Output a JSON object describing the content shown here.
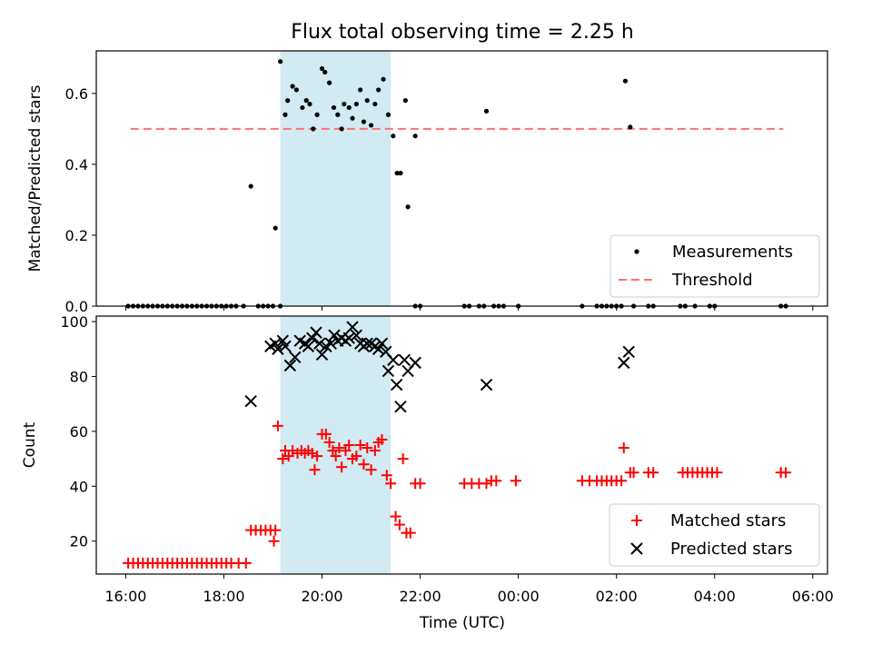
{
  "chart_data": {
    "title": "Flux total observing time = 2.25 h",
    "xlabel": "Time (UTC)",
    "x_unit": "hours since 16:00 UTC (local axis offset)",
    "xlim": [
      -0.6,
      14.3
    ],
    "xticks": [
      {
        "label": "16:00",
        "value": 0
      },
      {
        "label": "18:00",
        "value": 2
      },
      {
        "label": "20:00",
        "value": 4
      },
      {
        "label": "22:00",
        "value": 6
      },
      {
        "label": "00:00",
        "value": 8
      },
      {
        "label": "02:00",
        "value": 10
      },
      {
        "label": "04:00",
        "value": 12
      },
      {
        "label": "06:00",
        "value": 14
      }
    ],
    "highlight_span": {
      "x0": 3.15,
      "x1": 5.4,
      "color": "#add8e6"
    },
    "panels": [
      {
        "type": "scatter",
        "ylabel": "Matched/Predicted stars",
        "ylim": [
          0,
          0.72
        ],
        "yticks": [
          0.0,
          0.2,
          0.4,
          0.6
        ],
        "ytick_labels": [
          "0.0",
          "0.2",
          "0.4",
          "0.6"
        ],
        "threshold": {
          "name": "Threshold",
          "value": 0.5,
          "x0": 0.1,
          "x1": 13.4,
          "color": "#ff7070"
        },
        "legend_position": "lower-right",
        "legend": [
          "Measurements",
          "Threshold"
        ],
        "series": [
          {
            "name": "Measurements",
            "marker": "dot",
            "color": "#000000",
            "points": [
              [
                0.05,
                0
              ],
              [
                0.15,
                0
              ],
              [
                0.25,
                0
              ],
              [
                0.35,
                0
              ],
              [
                0.45,
                0
              ],
              [
                0.55,
                0
              ],
              [
                0.65,
                0
              ],
              [
                0.75,
                0
              ],
              [
                0.85,
                0
              ],
              [
                0.95,
                0
              ],
              [
                1.05,
                0
              ],
              [
                1.15,
                0
              ],
              [
                1.25,
                0
              ],
              [
                1.35,
                0
              ],
              [
                1.45,
                0
              ],
              [
                1.55,
                0
              ],
              [
                1.65,
                0
              ],
              [
                1.75,
                0
              ],
              [
                1.85,
                0
              ],
              [
                1.95,
                0
              ],
              [
                2.05,
                0
              ],
              [
                2.15,
                0
              ],
              [
                2.25,
                0
              ],
              [
                2.4,
                0
              ],
              [
                2.55,
                0.338
              ],
              [
                2.7,
                0
              ],
              [
                2.8,
                0
              ],
              [
                2.9,
                0
              ],
              [
                3.0,
                0
              ],
              [
                3.15,
                0
              ],
              [
                3.05,
                0.22
              ],
              [
                3.15,
                0.69
              ],
              [
                3.25,
                0.54
              ],
              [
                3.3,
                0.58
              ],
              [
                3.4,
                0.62
              ],
              [
                3.48,
                0.61
              ],
              [
                3.6,
                0.56
              ],
              [
                3.68,
                0.58
              ],
              [
                3.75,
                0.57
              ],
              [
                3.82,
                0.5
              ],
              [
                3.9,
                0.54
              ],
              [
                4.0,
                0.67
              ],
              [
                4.06,
                0.66
              ],
              [
                4.15,
                0.63
              ],
              [
                4.24,
                0.56
              ],
              [
                4.32,
                0.54
              ],
              [
                4.4,
                0.5
              ],
              [
                4.45,
                0.57
              ],
              [
                4.55,
                0.56
              ],
              [
                4.62,
                0.53
              ],
              [
                4.7,
                0.57
              ],
              [
                4.78,
                0.61
              ],
              [
                4.85,
                0.52
              ],
              [
                4.92,
                0.58
              ],
              [
                5.0,
                0.51
              ],
              [
                5.08,
                0.57
              ],
              [
                5.15,
                0.61
              ],
              [
                5.25,
                0.64
              ],
              [
                5.35,
                0.54
              ],
              [
                5.45,
                0.48
              ],
              [
                5.53,
                0.375
              ],
              [
                5.6,
                0.375
              ],
              [
                5.7,
                0.58
              ],
              [
                5.75,
                0.28
              ],
              [
                5.9,
                0.48
              ],
              [
                5.9,
                0
              ],
              [
                6.0,
                0
              ],
              [
                6.9,
                0
              ],
              [
                7.0,
                0
              ],
              [
                7.2,
                0
              ],
              [
                7.3,
                0
              ],
              [
                7.35,
                0.55
              ],
              [
                7.5,
                0
              ],
              [
                7.6,
                0
              ],
              [
                7.7,
                0
              ],
              [
                8.0,
                0
              ],
              [
                9.3,
                0
              ],
              [
                9.6,
                0
              ],
              [
                9.7,
                0
              ],
              [
                9.8,
                0
              ],
              [
                9.9,
                0
              ],
              [
                10.0,
                0
              ],
              [
                10.1,
                0
              ],
              [
                10.18,
                0.635
              ],
              [
                10.28,
                0.505
              ],
              [
                10.35,
                0
              ],
              [
                10.65,
                0
              ],
              [
                10.75,
                0
              ],
              [
                11.3,
                0
              ],
              [
                11.4,
                0
              ],
              [
                11.6,
                0
              ],
              [
                11.9,
                0
              ],
              [
                12.0,
                0
              ],
              [
                13.35,
                0
              ],
              [
                13.45,
                0
              ]
            ]
          }
        ]
      },
      {
        "type": "scatter",
        "ylabel": "Count",
        "ylim": [
          8,
          102
        ],
        "yticks": [
          20,
          40,
          60,
          80,
          100
        ],
        "ytick_labels": [
          "20",
          "40",
          "60",
          "80",
          "100"
        ],
        "legend_position": "lower-right",
        "legend": [
          "Matched stars",
          "Predicted stars"
        ],
        "series": [
          {
            "name": "Matched stars",
            "marker": "plus",
            "color": "#ff0000",
            "points": [
              [
                0.05,
                12
              ],
              [
                0.15,
                12
              ],
              [
                0.25,
                12
              ],
              [
                0.35,
                12
              ],
              [
                0.45,
                12
              ],
              [
                0.55,
                12
              ],
              [
                0.65,
                12
              ],
              [
                0.75,
                12
              ],
              [
                0.85,
                12
              ],
              [
                0.95,
                12
              ],
              [
                1.05,
                12
              ],
              [
                1.15,
                12
              ],
              [
                1.25,
                12
              ],
              [
                1.35,
                12
              ],
              [
                1.45,
                12
              ],
              [
                1.55,
                12
              ],
              [
                1.65,
                12
              ],
              [
                1.75,
                12
              ],
              [
                1.85,
                12
              ],
              [
                1.95,
                12
              ],
              [
                2.05,
                12
              ],
              [
                2.15,
                12
              ],
              [
                2.3,
                12
              ],
              [
                2.45,
                12
              ],
              [
                2.55,
                24
              ],
              [
                2.65,
                24
              ],
              [
                2.75,
                24
              ],
              [
                2.85,
                24
              ],
              [
                2.95,
                24
              ],
              [
                3.05,
                24
              ],
              [
                3.02,
                20
              ],
              [
                3.1,
                62
              ],
              [
                3.2,
                50
              ],
              [
                3.25,
                53
              ],
              [
                3.32,
                51
              ],
              [
                3.4,
                53
              ],
              [
                3.5,
                52
              ],
              [
                3.58,
                53
              ],
              [
                3.65,
                52
              ],
              [
                3.72,
                53
              ],
              [
                3.8,
                52
              ],
              [
                3.85,
                46
              ],
              [
                3.9,
                51
              ],
              [
                4.0,
                59
              ],
              [
                4.08,
                59
              ],
              [
                4.15,
                56
              ],
              [
                4.22,
                53
              ],
              [
                4.28,
                51
              ],
              [
                4.35,
                54
              ],
              [
                4.4,
                47
              ],
              [
                4.48,
                53
              ],
              [
                4.55,
                55
              ],
              [
                4.62,
                50
              ],
              [
                4.7,
                51
              ],
              [
                4.78,
                55
              ],
              [
                4.85,
                48
              ],
              [
                4.92,
                54
              ],
              [
                5.0,
                46
              ],
              [
                5.08,
                53
              ],
              [
                5.15,
                56
              ],
              [
                5.22,
                57
              ],
              [
                5.32,
                44
              ],
              [
                5.4,
                41
              ],
              [
                5.5,
                29
              ],
              [
                5.58,
                26
              ],
              [
                5.65,
                50
              ],
              [
                5.72,
                23
              ],
              [
                5.8,
                23
              ],
              [
                5.9,
                41
              ],
              [
                6.0,
                41
              ],
              [
                6.9,
                41
              ],
              [
                7.05,
                41
              ],
              [
                7.2,
                41
              ],
              [
                7.35,
                41
              ],
              [
                7.45,
                42
              ],
              [
                7.55,
                42
              ],
              [
                7.95,
                42
              ],
              [
                9.3,
                42
              ],
              [
                9.45,
                42
              ],
              [
                9.6,
                42
              ],
              [
                9.7,
                42
              ],
              [
                9.8,
                42
              ],
              [
                9.9,
                42
              ],
              [
                10.0,
                42
              ],
              [
                10.1,
                42
              ],
              [
                10.15,
                54
              ],
              [
                10.28,
                45
              ],
              [
                10.35,
                45
              ],
              [
                10.65,
                45
              ],
              [
                10.75,
                45
              ],
              [
                11.35,
                45
              ],
              [
                11.45,
                45
              ],
              [
                11.55,
                45
              ],
              [
                11.65,
                45
              ],
              [
                11.75,
                45
              ],
              [
                11.85,
                45
              ],
              [
                11.95,
                45
              ],
              [
                12.05,
                45
              ],
              [
                13.35,
                45
              ],
              [
                13.45,
                45
              ]
            ]
          },
          {
            "name": "Predicted stars",
            "marker": "x",
            "color": "#000000",
            "points": [
              [
                2.55,
                71
              ],
              [
                2.95,
                91
              ],
              [
                3.05,
                92
              ],
              [
                3.1,
                90
              ],
              [
                3.2,
                93
              ],
              [
                3.25,
                91
              ],
              [
                3.35,
                84
              ],
              [
                3.45,
                87
              ],
              [
                3.55,
                93
              ],
              [
                3.65,
                92
              ],
              [
                3.72,
                91
              ],
              [
                3.8,
                94
              ],
              [
                3.88,
                96
              ],
              [
                3.95,
                92
              ],
              [
                4.0,
                88
              ],
              [
                4.08,
                91
              ],
              [
                4.18,
                92
              ],
              [
                4.25,
                95
              ],
              [
                4.32,
                93
              ],
              [
                4.4,
                94
              ],
              [
                4.48,
                93
              ],
              [
                4.55,
                94
              ],
              [
                4.62,
                98
              ],
              [
                4.7,
                95
              ],
              [
                4.78,
                92
              ],
              [
                4.85,
                91
              ],
              [
                4.92,
                92
              ],
              [
                5.0,
                92
              ],
              [
                5.08,
                91
              ],
              [
                5.15,
                90
              ],
              [
                5.22,
                92
              ],
              [
                5.3,
                89
              ],
              [
                5.35,
                82
              ],
              [
                5.45,
                86
              ],
              [
                5.52,
                77
              ],
              [
                5.6,
                69
              ],
              [
                5.68,
                86
              ],
              [
                5.75,
                82
              ],
              [
                5.9,
                85
              ],
              [
                7.35,
                77
              ],
              [
                10.15,
                85
              ],
              [
                10.25,
                89
              ]
            ]
          }
        ]
      }
    ]
  }
}
